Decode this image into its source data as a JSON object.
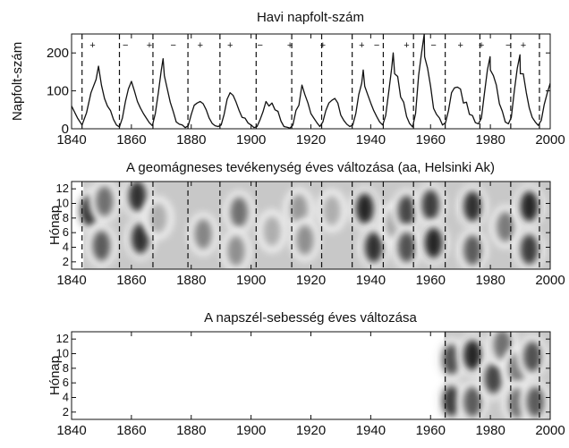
{
  "chart_data": [
    {
      "type": "line",
      "title": "Havi napfolt-szám",
      "xlabel": "",
      "ylabel": "Napfolt-szám",
      "xlim": [
        1840,
        2000
      ],
      "ylim": [
        0,
        250
      ],
      "xticks": [
        1840,
        1860,
        1880,
        1900,
        1920,
        1940,
        1960,
        1980,
        2000
      ],
      "yticks": [
        0,
        100,
        200
      ],
      "cycle_boundaries": [
        1843.5,
        1856.0,
        1867.2,
        1878.9,
        1889.6,
        1901.7,
        1913.6,
        1923.6,
        1933.8,
        1944.2,
        1954.3,
        1964.9,
        1976.5,
        1986.8,
        1996.4
      ],
      "polarity_markers": [
        {
          "x": 1847,
          "label": "+"
        },
        {
          "x": 1858,
          "label": "−"
        },
        {
          "x": 1866,
          "label": "+"
        },
        {
          "x": 1874,
          "label": "−"
        },
        {
          "x": 1883,
          "label": "+"
        },
        {
          "x": 1893,
          "label": "+"
        },
        {
          "x": 1903,
          "label": "−"
        },
        {
          "x": 1913,
          "label": "+"
        },
        {
          "x": 1924,
          "label": "+"
        },
        {
          "x": 1937,
          "label": "+"
        },
        {
          "x": 1942,
          "label": "−"
        },
        {
          "x": 1952,
          "label": "+"
        },
        {
          "x": 1961,
          "label": "−"
        },
        {
          "x": 1970,
          "label": "+"
        },
        {
          "x": 1977,
          "label": "+"
        },
        {
          "x": 1986,
          "label": "−"
        },
        {
          "x": 1991,
          "label": "+"
        }
      ],
      "series": [
        {
          "values": [
            [
              1840,
              60
            ],
            [
              1842,
              28
            ],
            [
              1843.5,
              10
            ],
            [
              1845,
              42
            ],
            [
              1846.5,
              95
            ],
            [
              1848.2,
              130
            ],
            [
              1849,
              165
            ],
            [
              1850,
              115
            ],
            [
              1851,
              80
            ],
            [
              1852,
              60
            ],
            [
              1853,
              48
            ],
            [
              1854,
              25
            ],
            [
              1855,
              10
            ],
            [
              1856,
              5
            ],
            [
              1857,
              28
            ],
            [
              1858,
              72
            ],
            [
              1859,
              105
            ],
            [
              1860,
              125
            ],
            [
              1861,
              100
            ],
            [
              1862,
              72
            ],
            [
              1863,
              55
            ],
            [
              1864,
              40
            ],
            [
              1865,
              28
            ],
            [
              1866,
              16
            ],
            [
              1867,
              8
            ],
            [
              1868,
              40
            ],
            [
              1869,
              95
            ],
            [
              1870,
              155
            ],
            [
              1870.6,
              185
            ],
            [
              1871,
              140
            ],
            [
              1872,
              105
            ],
            [
              1873,
              70
            ],
            [
              1874,
              45
            ],
            [
              1875,
              18
            ],
            [
              1876,
              12
            ],
            [
              1877,
              10
            ],
            [
              1878,
              3
            ],
            [
              1879,
              8
            ],
            [
              1880,
              38
            ],
            [
              1881,
              62
            ],
            [
              1882,
              68
            ],
            [
              1883,
              72
            ],
            [
              1884,
              66
            ],
            [
              1885,
              50
            ],
            [
              1886,
              28
            ],
            [
              1887,
              14
            ],
            [
              1888,
              8
            ],
            [
              1889,
              6
            ],
            [
              1890,
              10
            ],
            [
              1891,
              38
            ],
            [
              1892,
              78
            ],
            [
              1893,
              95
            ],
            [
              1894,
              88
            ],
            [
              1895,
              70
            ],
            [
              1896,
              48
            ],
            [
              1897,
              30
            ],
            [
              1898,
              28
            ],
            [
              1899,
              15
            ],
            [
              1900,
              10
            ],
            [
              1901,
              3
            ],
            [
              1902,
              6
            ],
            [
              1903,
              24
            ],
            [
              1904,
              45
            ],
            [
              1905,
              72
            ],
            [
              1906,
              60
            ],
            [
              1907,
              68
            ],
            [
              1908,
              50
            ],
            [
              1909,
              46
            ],
            [
              1910,
              20
            ],
            [
              1911,
              6
            ],
            [
              1912,
              4
            ],
            [
              1913,
              2
            ],
            [
              1914,
              10
            ],
            [
              1915,
              48
            ],
            [
              1916,
              62
            ],
            [
              1917,
              115
            ],
            [
              1918,
              90
            ],
            [
              1919,
              68
            ],
            [
              1920,
              40
            ],
            [
              1921,
              28
            ],
            [
              1922,
              16
            ],
            [
              1923,
              6
            ],
            [
              1924,
              18
            ],
            [
              1925,
              48
            ],
            [
              1926,
              68
            ],
            [
              1927,
              75
            ],
            [
              1928,
              80
            ],
            [
              1929,
              68
            ],
            [
              1930,
              36
            ],
            [
              1931,
              22
            ],
            [
              1932,
              12
            ],
            [
              1933,
              6
            ],
            [
              1934,
              10
            ],
            [
              1935,
              40
            ],
            [
              1936,
              90
            ],
            [
              1937,
              120
            ],
            [
              1937.5,
              155
            ],
            [
              1938,
              112
            ],
            [
              1939,
              90
            ],
            [
              1940,
              68
            ],
            [
              1941,
              48
            ],
            [
              1942,
              32
            ],
            [
              1943,
              18
            ],
            [
              1944,
              10
            ],
            [
              1945,
              35
            ],
            [
              1946,
              95
            ],
            [
              1947,
              160
            ],
            [
              1947.5,
              200
            ],
            [
              1948,
              145
            ],
            [
              1949,
              138
            ],
            [
              1950,
              84
            ],
            [
              1951,
              70
            ],
            [
              1952,
              32
            ],
            [
              1953,
              14
            ],
            [
              1954,
              5
            ],
            [
              1955,
              40
            ],
            [
              1956,
              140
            ],
            [
              1957,
              200
            ],
            [
              1957.9,
              250
            ],
            [
              1958,
              190
            ],
            [
              1959,
              160
            ],
            [
              1960,
              112
            ],
            [
              1961,
              54
            ],
            [
              1962,
              38
            ],
            [
              1963,
              28
            ],
            [
              1964,
              10
            ],
            [
              1965,
              16
            ],
            [
              1966,
              48
            ],
            [
              1967,
              95
            ],
            [
              1968,
              108
            ],
            [
              1969,
              110
            ],
            [
              1970,
              105
            ],
            [
              1971,
              68
            ],
            [
              1972,
              70
            ],
            [
              1973,
              38
            ],
            [
              1974,
              35
            ],
            [
              1975,
              16
            ],
            [
              1976,
              13
            ],
            [
              1977,
              28
            ],
            [
              1978,
              92
            ],
            [
              1979,
              155
            ],
            [
              1979.9,
              190
            ],
            [
              1980,
              155
            ],
            [
              1981,
              140
            ],
            [
              1982,
              115
            ],
            [
              1983,
              66
            ],
            [
              1984,
              46
            ],
            [
              1985,
              18
            ],
            [
              1986,
              13
            ],
            [
              1987,
              30
            ],
            [
              1988,
              100
            ],
            [
              1989,
              160
            ],
            [
              1989.9,
              195
            ],
            [
              1990,
              145
            ],
            [
              1991,
              145
            ],
            [
              1992,
              95
            ],
            [
              1993,
              55
            ],
            [
              1994,
              30
            ],
            [
              1995,
              18
            ],
            [
              1996,
              9
            ],
            [
              1997,
              22
            ],
            [
              1998,
              64
            ],
            [
              1999,
              94
            ],
            [
              2000,
              120
            ]
          ]
        }
      ]
    },
    {
      "type": "heatmap",
      "title": "A geomágneses tevékenység éves változása (aa, Helsinki Ak)",
      "xlabel": "",
      "ylabel": "Hónap",
      "xlim": [
        1840,
        2000
      ],
      "ylim": [
        1,
        13
      ],
      "xticks": [
        1840,
        1860,
        1880,
        1900,
        1920,
        1940,
        1960,
        1980,
        2000
      ],
      "yticks": [
        2,
        4,
        6,
        8,
        10,
        12
      ],
      "data_range": [
        1844,
        2000
      ],
      "grayscale": "dark = high activity",
      "cycle_boundaries": [
        1843.5,
        1856.0,
        1867.2,
        1878.9,
        1889.6,
        1901.7,
        1913.6,
        1923.6,
        1933.8,
        1944.2,
        1954.3,
        1964.9,
        1976.5,
        1986.8,
        1996.4
      ],
      "blobs": [
        {
          "x": 1846,
          "y": 9.0,
          "intensity": 0.9
        },
        {
          "x": 1851,
          "y": 10.3,
          "intensity": 0.6
        },
        {
          "x": 1850,
          "y": 4.2,
          "intensity": 0.7
        },
        {
          "x": 1862,
          "y": 11.0,
          "intensity": 0.9
        },
        {
          "x": 1863,
          "y": 5.2,
          "intensity": 0.9
        },
        {
          "x": 1869,
          "y": 8.0,
          "intensity": 0.3
        },
        {
          "x": 1884,
          "y": 5.8,
          "intensity": 0.5
        },
        {
          "x": 1896,
          "y": 8.8,
          "intensity": 0.6
        },
        {
          "x": 1895,
          "y": 3.5,
          "intensity": 0.45
        },
        {
          "x": 1907,
          "y": 6.2,
          "intensity": 0.3
        },
        {
          "x": 1916,
          "y": 9.2,
          "intensity": 0.4
        },
        {
          "x": 1918,
          "y": 5.0,
          "intensity": 0.45
        },
        {
          "x": 1927,
          "y": 9.0,
          "intensity": 0.3
        },
        {
          "x": 1938,
          "y": 9.3,
          "intensity": 0.95
        },
        {
          "x": 1941,
          "y": 4.0,
          "intensity": 0.9
        },
        {
          "x": 1948,
          "y": 7.2,
          "intensity": 0.35
        },
        {
          "x": 1952,
          "y": 9.0,
          "intensity": 0.8
        },
        {
          "x": 1952,
          "y": 4.0,
          "intensity": 0.75
        },
        {
          "x": 1960,
          "y": 9.8,
          "intensity": 0.85
        },
        {
          "x": 1961,
          "y": 4.6,
          "intensity": 0.95
        },
        {
          "x": 1974,
          "y": 9.6,
          "intensity": 0.9
        },
        {
          "x": 1974,
          "y": 3.6,
          "intensity": 0.7
        },
        {
          "x": 1985,
          "y": 6.8,
          "intensity": 0.55
        },
        {
          "x": 1993,
          "y": 9.6,
          "intensity": 0.95
        },
        {
          "x": 1993,
          "y": 3.7,
          "intensity": 0.85
        }
      ]
    },
    {
      "type": "heatmap",
      "title": "A napszél-sebesség éves változása",
      "xlabel": "",
      "ylabel": "Hónap",
      "xlim": [
        1840,
        2000
      ],
      "ylim": [
        1,
        13
      ],
      "xticks": [
        1840,
        1860,
        1880,
        1900,
        1920,
        1940,
        1960,
        1980,
        2000
      ],
      "yticks": [
        2,
        4,
        6,
        8,
        10,
        12
      ],
      "data_range": [
        1964.5,
        2000
      ],
      "grayscale": "dark = high speed",
      "cycle_boundaries": [
        1964.9,
        1976.5,
        1986.8,
        1996.4
      ],
      "blobs": [
        {
          "x": 1967,
          "y": 9.2,
          "intensity": 0.75
        },
        {
          "x": 1967,
          "y": 3.5,
          "intensity": 0.85
        },
        {
          "x": 1974,
          "y": 9.8,
          "intensity": 0.95
        },
        {
          "x": 1974,
          "y": 3.4,
          "intensity": 0.7
        },
        {
          "x": 1981,
          "y": 6.6,
          "intensity": 0.8
        },
        {
          "x": 1984,
          "y": 11.2,
          "intensity": 0.6
        },
        {
          "x": 1989,
          "y": 8.0,
          "intensity": 0.55
        },
        {
          "x": 1989,
          "y": 3.2,
          "intensity": 0.6
        },
        {
          "x": 1994,
          "y": 9.6,
          "intensity": 0.75
        },
        {
          "x": 1995,
          "y": 3.4,
          "intensity": 0.7
        }
      ]
    }
  ]
}
